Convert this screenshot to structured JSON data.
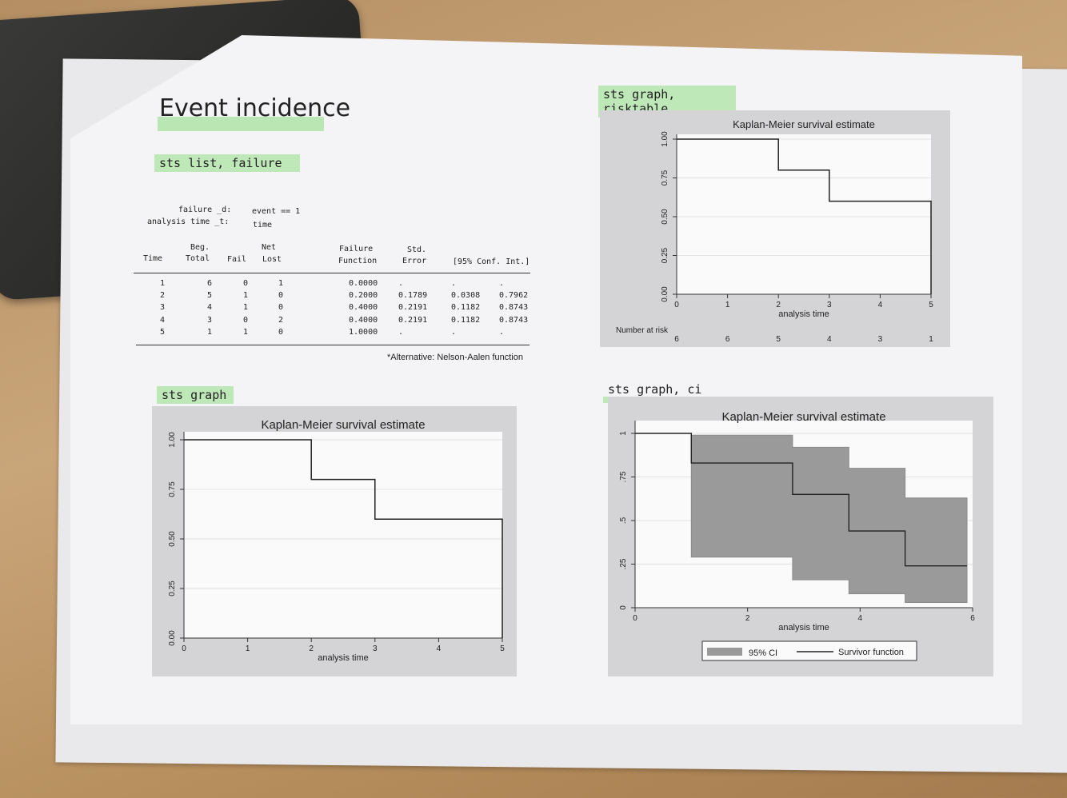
{
  "document": {
    "title": "Event incidence",
    "cmd_list": "sts list, failure",
    "cmd_graph": "sts graph",
    "cmd_risk": "sts graph, risktable",
    "cmd_ci": "sts graph, ci",
    "header": {
      "failure_label": "failure _d:",
      "failure_value": "event == 1",
      "time_label": "analysis time _t:",
      "time_value": "time"
    },
    "columns": {
      "time": "Time",
      "beg_top": "Beg.",
      "beg_bottom": "Total",
      "fail": "Fail",
      "net_top": "Net",
      "net_bottom": "Lost",
      "ff_top": "Failure",
      "ff_bottom": "Function",
      "se_top": "Std.",
      "se_bottom": "Error",
      "ci": "[95% Conf. Int.]"
    },
    "rows": [
      {
        "time": "1",
        "total": "6",
        "fail": "0",
        "lost": "1",
        "ff": "0.0000",
        "se": ".",
        "lo": ".",
        "hi": "."
      },
      {
        "time": "2",
        "total": "5",
        "fail": "1",
        "lost": "0",
        "ff": "0.2000",
        "se": "0.1789",
        "lo": "0.0308",
        "hi": "0.7962"
      },
      {
        "time": "3",
        "total": "4",
        "fail": "1",
        "lost": "0",
        "ff": "0.4000",
        "se": "0.2191",
        "lo": "0.1182",
        "hi": "0.8743"
      },
      {
        "time": "4",
        "total": "3",
        "fail": "0",
        "lost": "2",
        "ff": "0.4000",
        "se": "0.2191",
        "lo": "0.1182",
        "hi": "0.8743"
      },
      {
        "time": "5",
        "total": "1",
        "fail": "1",
        "lost": "0",
        "ff": "1.0000",
        "se": ".",
        "lo": ".",
        "hi": "."
      }
    ],
    "note": "*Alternative: Nelson-Aalen function"
  },
  "chart_data": [
    {
      "type": "line",
      "id": "km_basic",
      "title": "Kaplan-Meier survival estimate",
      "xlabel": "analysis time",
      "x_ticks": [
        "0",
        "1",
        "2",
        "3",
        "4",
        "5"
      ],
      "y_ticks": [
        "0.00",
        "0.25",
        "0.50",
        "0.75",
        "1.00"
      ],
      "xlim": [
        0,
        5
      ],
      "ylim": [
        0,
        1
      ],
      "steps": [
        [
          0,
          1.0
        ],
        [
          2,
          1.0
        ],
        [
          2,
          0.8
        ],
        [
          3,
          0.8
        ],
        [
          3,
          0.6
        ],
        [
          5,
          0.6
        ],
        [
          5,
          0.0
        ]
      ]
    },
    {
      "type": "line",
      "id": "km_risk",
      "title": "Kaplan-Meier survival estimate",
      "xlabel": "analysis time",
      "x_ticks": [
        "0",
        "1",
        "2",
        "3",
        "4",
        "5"
      ],
      "y_ticks": [
        "0.00",
        "0.25",
        "0.50",
        "0.75",
        "1.00"
      ],
      "xlim": [
        0,
        5
      ],
      "ylim": [
        0,
        1
      ],
      "steps": [
        [
          0,
          1.0
        ],
        [
          2,
          1.0
        ],
        [
          2,
          0.8
        ],
        [
          3,
          0.8
        ],
        [
          3,
          0.6
        ],
        [
          5,
          0.6
        ],
        [
          5,
          0.0
        ]
      ],
      "risk_label": "Number at risk",
      "risk_values": [
        "6",
        "6",
        "5",
        "4",
        "3",
        "1"
      ]
    },
    {
      "type": "area",
      "id": "km_ci",
      "title": "Kaplan-Meier survival estimate",
      "xlabel": "analysis time",
      "x_ticks": [
        "0",
        "2",
        "4",
        "6"
      ],
      "y_ticks": [
        "0",
        ".25",
        ".5",
        ".75",
        "1"
      ],
      "xlim": [
        0,
        6
      ],
      "ylim": [
        0,
        1
      ],
      "survivor": [
        [
          0,
          1.0
        ],
        [
          1,
          1.0
        ],
        [
          1,
          0.83
        ],
        [
          2.8,
          0.83
        ],
        [
          2.8,
          0.65
        ],
        [
          3.8,
          0.65
        ],
        [
          3.8,
          0.44
        ],
        [
          4.8,
          0.44
        ],
        [
          4.8,
          0.24
        ],
        [
          5.9,
          0.24
        ]
      ],
      "ci_upper": [
        [
          1,
          0.99
        ],
        [
          2.8,
          0.99
        ],
        [
          2.8,
          0.92
        ],
        [
          3.8,
          0.92
        ],
        [
          3.8,
          0.8
        ],
        [
          4.8,
          0.8
        ],
        [
          4.8,
          0.63
        ],
        [
          5.9,
          0.63
        ]
      ],
      "ci_lower": [
        [
          1,
          0.29
        ],
        [
          2.8,
          0.29
        ],
        [
          2.8,
          0.16
        ],
        [
          3.8,
          0.16
        ],
        [
          3.8,
          0.08
        ],
        [
          4.8,
          0.08
        ],
        [
          4.8,
          0.03
        ],
        [
          5.9,
          0.03
        ]
      ],
      "legend_ci": "95% CI",
      "legend_line": "Survivor function",
      "colors": {
        "ci": "#9a9a9a",
        "panel": "#d6d6d6"
      }
    }
  ]
}
